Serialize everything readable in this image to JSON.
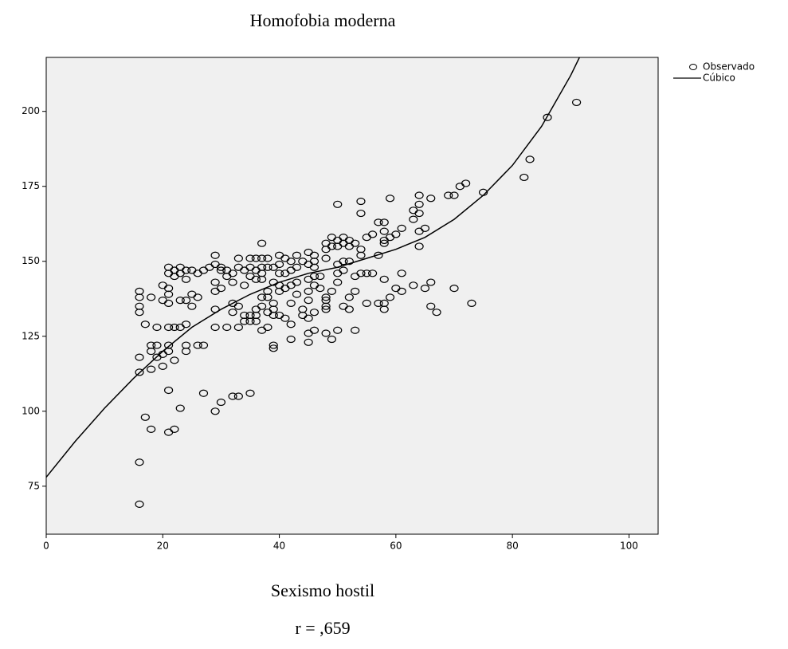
{
  "chart_data": {
    "type": "scatter",
    "title": "Homofobia moderna",
    "x_label": "Sexismo hostil",
    "annotation": "r = ,659",
    "xlim": [
      0,
      105
    ],
    "xticks": [
      0,
      20,
      40,
      60,
      80,
      100
    ],
    "ylim": [
      59,
      218
    ],
    "yticks": [
      75,
      100,
      125,
      150,
      175,
      200
    ],
    "background": "#f0f0f0",
    "legend": "right",
    "series": [
      {
        "name": "Observado",
        "type": "scatter",
        "color": "#000000",
        "x": [
          16,
          16,
          16,
          16,
          16,
          16,
          16,
          16,
          17,
          17,
          18,
          18,
          18,
          18,
          18,
          19,
          19,
          19,
          20,
          20,
          20,
          20,
          21,
          21,
          21,
          21,
          21,
          21,
          21,
          21,
          21,
          21,
          22,
          22,
          22,
          22,
          22,
          23,
          23,
          23,
          23,
          23,
          24,
          24,
          24,
          24,
          24,
          24,
          25,
          25,
          25,
          26,
          26,
          26,
          27,
          27,
          27,
          28,
          29,
          29,
          29,
          29,
          29,
          29,
          29,
          30,
          30,
          30,
          30,
          31,
          31,
          31,
          32,
          32,
          32,
          32,
          32,
          33,
          33,
          33,
          33,
          33,
          34,
          34,
          34,
          34,
          35,
          35,
          35,
          35,
          35,
          35,
          36,
          36,
          36,
          36,
          36,
          36,
          37,
          37,
          37,
          37,
          37,
          37,
          37,
          37,
          38,
          38,
          38,
          38,
          38,
          38,
          39,
          39,
          39,
          39,
          39,
          39,
          39,
          40,
          40,
          40,
          40,
          40,
          40,
          41,
          41,
          41,
          41,
          42,
          42,
          42,
          42,
          42,
          42,
          43,
          43,
          43,
          43,
          44,
          44,
          44,
          45,
          45,
          45,
          45,
          45,
          45,
          45,
          45,
          46,
          46,
          46,
          46,
          46,
          46,
          46,
          47,
          47,
          48,
          48,
          48,
          48,
          48,
          48,
          48,
          48,
          49,
          49,
          49,
          49,
          50,
          50,
          50,
          50,
          50,
          50,
          50,
          51,
          51,
          51,
          51,
          51,
          52,
          52,
          52,
          52,
          52,
          53,
          53,
          53,
          53,
          54,
          54,
          54,
          54,
          54,
          55,
          55,
          55,
          56,
          56,
          57,
          57,
          57,
          58,
          58,
          58,
          58,
          58,
          58,
          58,
          59,
          59,
          59,
          60,
          60,
          61,
          61,
          61,
          63,
          63,
          63,
          64,
          64,
          64,
          64,
          64,
          65,
          65,
          66,
          66,
          66,
          67,
          69,
          70,
          70,
          71,
          72,
          73,
          75,
          82,
          83,
          86,
          91
        ],
        "values": [
          140,
          138,
          135,
          133,
          118,
          113,
          83,
          69,
          129,
          98,
          138,
          122,
          120,
          114,
          94,
          128,
          122,
          118,
          142,
          137,
          115,
          119,
          148,
          146,
          141,
          139,
          136,
          128,
          122,
          120,
          107,
          93,
          147,
          145,
          128,
          117,
          94,
          148,
          146,
          137,
          128,
          101,
          147,
          144,
          137,
          122,
          120,
          129,
          147,
          139,
          135,
          146,
          138,
          122,
          147,
          122,
          106,
          148,
          152,
          149,
          143,
          140,
          134,
          128,
          100,
          148,
          147,
          141,
          103,
          147,
          145,
          128,
          146,
          143,
          136,
          133,
          105,
          151,
          148,
          135,
          128,
          105,
          147,
          142,
          132,
          130,
          151,
          148,
          145,
          132,
          130,
          106,
          151,
          147,
          144,
          134,
          132,
          130,
          156,
          151,
          148,
          146,
          144,
          138,
          135,
          127,
          151,
          148,
          140,
          138,
          133,
          128,
          148,
          143,
          136,
          134,
          132,
          122,
          121,
          152,
          149,
          146,
          142,
          140,
          132,
          151,
          146,
          141,
          131,
          150,
          147,
          142,
          136,
          129,
          124,
          152,
          148,
          143,
          139,
          150,
          134,
          132,
          153,
          149,
          144,
          140,
          137,
          131,
          126,
          123,
          152,
          150,
          148,
          145,
          142,
          133,
          127,
          145,
          141,
          156,
          154,
          151,
          138,
          137,
          135,
          134,
          126,
          158,
          155,
          140,
          124,
          169,
          157,
          155,
          149,
          146,
          143,
          127,
          158,
          156,
          150,
          147,
          135,
          157,
          155,
          150,
          138,
          134,
          156,
          145,
          140,
          127,
          170,
          166,
          154,
          152,
          146,
          158,
          146,
          136,
          159,
          146,
          163,
          152,
          136,
          163,
          160,
          157,
          156,
          144,
          136,
          134,
          171,
          158,
          138,
          159,
          141,
          161,
          146,
          140,
          167,
          164,
          142,
          172,
          169,
          166,
          160,
          155,
          161,
          141,
          171,
          143,
          135,
          133,
          172,
          172,
          141,
          175,
          176,
          136,
          173,
          178,
          184,
          198,
          203
        ]
      },
      {
        "name": "Cúbico",
        "type": "line",
        "color": "#000000",
        "x": [
          0,
          5,
          10,
          15,
          20,
          25,
          30,
          35,
          40,
          45,
          50,
          55,
          60,
          65,
          70,
          75,
          80,
          85,
          90,
          91.5
        ],
        "values": [
          78,
          90,
          101,
          111,
          120,
          128,
          134,
          139,
          143,
          146,
          148,
          151,
          154,
          158,
          164,
          172,
          182,
          195,
          212,
          218
        ]
      }
    ]
  }
}
